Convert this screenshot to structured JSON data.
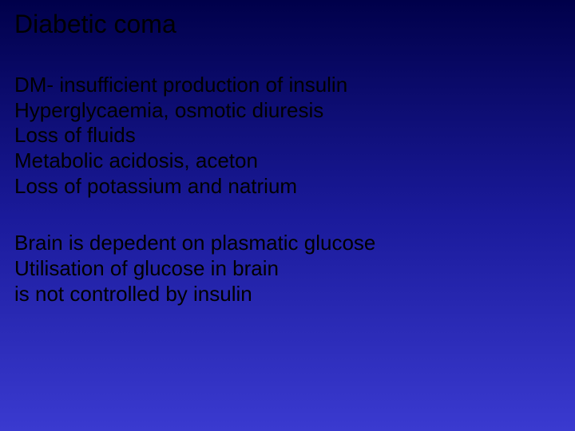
{
  "slide": {
    "background": {
      "gradient_top": "#00004a",
      "gradient_mid": "#1a1a9a",
      "gradient_bottom": "#3a3ad0"
    },
    "text_color": "#000000",
    "font_family": "Arial",
    "title": {
      "text": "Diabetic coma",
      "fontsize": 32
    },
    "block1": {
      "fontsize": 26,
      "lines": [
        "DM- insufficient production of insulin",
        "Hyperglycaemia, osmotic diuresis",
        "Loss of fluids",
        "Metabolic acidosis, aceton",
        "Loss of potassium and  natrium"
      ]
    },
    "block2": {
      "fontsize": 26,
      "lines": [
        "Brain is depedent on plasmatic glucose",
        "Utilisation of glucose  in brain",
        "is not  controlled by insulin"
      ]
    }
  }
}
